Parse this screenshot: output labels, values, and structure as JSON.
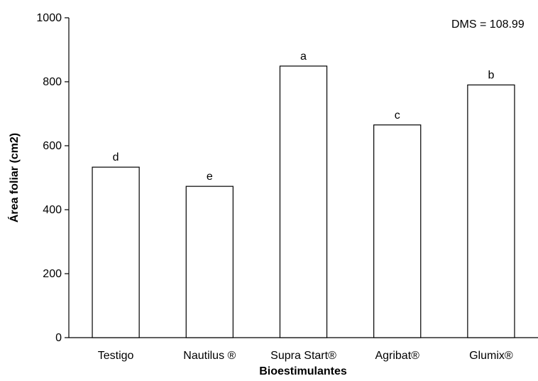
{
  "chart_data": {
    "type": "bar",
    "categories": [
      "Testigo",
      "Nautilus ®",
      "Supra Start®",
      "Agribat®",
      "Glumix®"
    ],
    "values": [
      533,
      473,
      849,
      665,
      790
    ],
    "significance_letters": [
      "d",
      "e",
      "a",
      "c",
      "b"
    ],
    "xlabel": "Bioestimulantes",
    "ylabel": "Área foliar (cm2)",
    "ylim": [
      0,
      1000
    ],
    "yticks": [
      "0",
      "200",
      "400",
      "600",
      "800",
      "1000"
    ],
    "annotation": "DMS = 108.99",
    "grid": false,
    "bar_fill": "#ffffff",
    "bar_stroke": "#000000"
  }
}
